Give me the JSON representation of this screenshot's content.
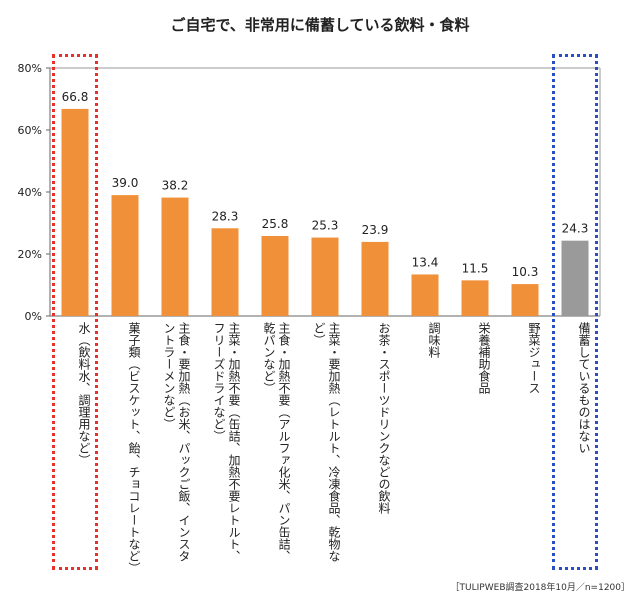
{
  "chart_data": {
    "type": "bar",
    "title": "ご自宅で、非常用に備蓄している飲料・食料",
    "categories": [
      "水（飲料水、調理用など）",
      "菓子類（ビスケット、飴、チョコレートなど）",
      "主食・要加熱（お米、パックご飯、インスタントラーメンなど）",
      "主菜・加熱不要（缶詰、加熱不要レトルト、フリーズドライなど）",
      "主食・加熱不要（アルファ化米、パン缶詰、乾パンなど）",
      "主菜・要加熱（レトルト、冷凍食品、乾物など）",
      "お茶・スポーツドリンクなどの飲料",
      "調味料",
      "栄養補助食品",
      "野菜ジュース",
      "備蓄しているものはない"
    ],
    "values": [
      66.8,
      39.0,
      38.2,
      28.3,
      25.8,
      25.3,
      23.9,
      13.4,
      11.5,
      10.3,
      24.3
    ],
    "value_labels": [
      "66.8",
      "39.0",
      "38.2",
      "28.3",
      "25.8",
      "25.3",
      "23.9",
      "13.4",
      "11.5",
      "10.3",
      "24.3"
    ],
    "bar_colors": [
      "#f0913a",
      "#f0913a",
      "#f0913a",
      "#f0913a",
      "#f0913a",
      "#f0913a",
      "#f0913a",
      "#f0913a",
      "#f0913a",
      "#f0913a",
      "#9a9a9a"
    ],
    "ylim": [
      0,
      80
    ],
    "yticks": [
      0,
      20,
      40,
      60,
      80
    ],
    "ytick_labels": [
      "0%",
      "20%",
      "40%",
      "60%",
      "80%"
    ],
    "xlabel": "",
    "ylabel": "",
    "grid": false,
    "highlights": [
      {
        "category_index": 0,
        "color": "#e8302a"
      },
      {
        "category_index": 10,
        "color": "#2a4fc4"
      }
    ]
  },
  "source_note": "［TULIPWEB調査2018年10月／n=1200］"
}
